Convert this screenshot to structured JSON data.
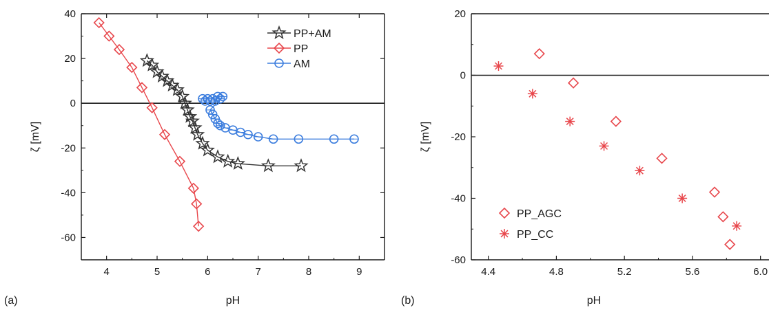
{
  "chart_data": [
    {
      "type": "line",
      "panel_label": "(a)",
      "xlabel": "pH",
      "ylabel": "ζ [mV]",
      "xlim": [
        3.5,
        9.5
      ],
      "ylim": [
        -70,
        40
      ],
      "xticks": [
        4,
        5,
        6,
        7,
        8,
        9
      ],
      "yticks": [
        40,
        20,
        0,
        -20,
        -40,
        -60
      ],
      "zero_line": true,
      "legend_position": "top-right",
      "series": [
        {
          "name": "PP+AM",
          "color": "#333333",
          "marker": "star",
          "x": [
            4.8,
            4.9,
            5.0,
            5.1,
            5.2,
            5.3,
            5.4,
            5.5,
            5.55,
            5.6,
            5.65,
            5.7,
            5.75,
            5.8,
            5.9,
            6.0,
            6.2,
            6.4,
            6.6,
            7.2,
            7.85
          ],
          "y": [
            19,
            17,
            14,
            12,
            10,
            8,
            6,
            3,
            0,
            -3,
            -6,
            -8,
            -11,
            -14,
            -18,
            -21,
            -24,
            -26,
            -27,
            -28,
            -28
          ]
        },
        {
          "name": "PP",
          "color": "#e8474c",
          "marker": "diamond",
          "x": [
            3.85,
            4.05,
            4.25,
            4.5,
            4.7,
            4.9,
            5.15,
            5.45,
            5.72,
            5.78,
            5.82
          ],
          "y": [
            36,
            30,
            24,
            16,
            7,
            -2,
            -14,
            -26,
            -38,
            -45,
            -55
          ]
        },
        {
          "name": "AM",
          "color": "#3d7ede",
          "marker": "circle",
          "x": [
            5.9,
            5.95,
            6.0,
            6.05,
            6.1,
            6.15,
            6.2,
            6.25,
            6.3,
            6.05,
            6.1,
            6.15,
            6.2,
            6.25,
            6.35,
            6.5,
            6.65,
            6.8,
            7.0,
            7.3,
            7.8,
            8.5,
            8.9
          ],
          "y": [
            2,
            1,
            2,
            1,
            2,
            1,
            3,
            2,
            3,
            -3,
            -5,
            -7,
            -9,
            -10,
            -11,
            -12,
            -13,
            -14,
            -15,
            -16,
            -16,
            -16,
            -16
          ]
        }
      ]
    },
    {
      "type": "scatter",
      "panel_label": "(b)",
      "xlabel": "pH",
      "ylabel": "ζ [mV]",
      "xlim": [
        4.3,
        6.05
      ],
      "ylim": [
        -60,
        20
      ],
      "xticks": [
        4.4,
        4.8,
        5.2,
        5.6,
        6.0
      ],
      "xtick_labels": [
        "4.4",
        "4.8",
        "5.2",
        "5.6",
        "6.0"
      ],
      "yticks": [
        20,
        0,
        -20,
        -40,
        -60
      ],
      "zero_line": true,
      "legend_position": "bottom-left",
      "series": [
        {
          "name": "PP_AGC",
          "color": "#e8474c",
          "marker": "diamond",
          "x": [
            4.7,
            4.9,
            5.15,
            5.42,
            5.73,
            5.78,
            5.82
          ],
          "y": [
            7,
            -2.5,
            -15,
            -27,
            -38,
            -46,
            -55
          ]
        },
        {
          "name": "PP_CC",
          "color": "#e8474c",
          "marker": "asterisk",
          "x": [
            4.46,
            4.66,
            4.88,
            5.08,
            5.29,
            5.54,
            5.86
          ],
          "y": [
            3,
            -6,
            -15,
            -23,
            -31,
            -40,
            -49
          ]
        }
      ]
    }
  ]
}
